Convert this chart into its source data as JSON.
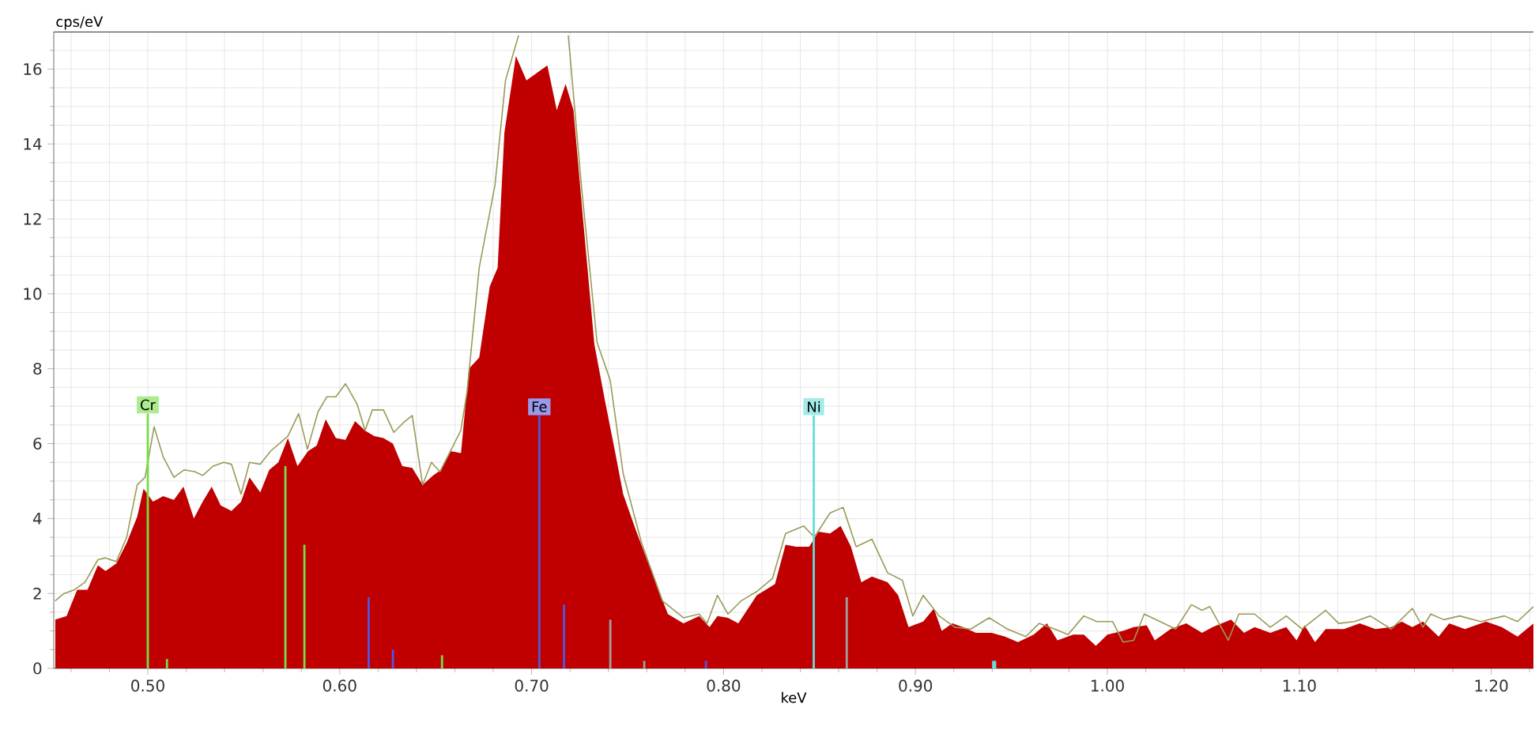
{
  "chart_data": {
    "type": "area",
    "xlabel": "keV",
    "ylabel": "cps/eV",
    "xlim": [
      0.451,
      1.222
    ],
    "ylim": [
      0,
      17
    ],
    "xticks": [
      {
        "value": 0.46,
        "label": null
      },
      {
        "value": 0.48,
        "label": null
      },
      {
        "value": 0.5,
        "label": "0.50"
      },
      {
        "value": 0.52,
        "label": null
      },
      {
        "value": 0.54,
        "label": null
      },
      {
        "value": 0.56,
        "label": null
      },
      {
        "value": 0.58,
        "label": null
      },
      {
        "value": 0.6,
        "label": "0.60"
      },
      {
        "value": 0.62,
        "label": null
      },
      {
        "value": 0.64,
        "label": null
      },
      {
        "value": 0.66,
        "label": null
      },
      {
        "value": 0.68,
        "label": null
      },
      {
        "value": 0.7,
        "label": "0.70"
      },
      {
        "value": 0.72,
        "label": null
      },
      {
        "value": 0.74,
        "label": null
      },
      {
        "value": 0.76,
        "label": null
      },
      {
        "value": 0.78,
        "label": null
      },
      {
        "value": 0.8,
        "label": "0.80"
      },
      {
        "value": 0.82,
        "label": null
      },
      {
        "value": 0.84,
        "label": null
      },
      {
        "value": 0.86,
        "label": null
      },
      {
        "value": 0.88,
        "label": null
      },
      {
        "value": 0.9,
        "label": "0.90"
      },
      {
        "value": 0.92,
        "label": null
      },
      {
        "value": 0.94,
        "label": null
      },
      {
        "value": 0.96,
        "label": null
      },
      {
        "value": 0.98,
        "label": null
      },
      {
        "value": 1.0,
        "label": "1.00"
      },
      {
        "value": 1.02,
        "label": null
      },
      {
        "value": 1.04,
        "label": null
      },
      {
        "value": 1.06,
        "label": null
      },
      {
        "value": 1.08,
        "label": null
      },
      {
        "value": 1.1,
        "label": "1.10"
      },
      {
        "value": 1.12,
        "label": null
      },
      {
        "value": 1.14,
        "label": null
      },
      {
        "value": 1.16,
        "label": null
      },
      {
        "value": 1.18,
        "label": null
      },
      {
        "value": 1.2,
        "label": "1.20"
      },
      {
        "value": 1.22,
        "label": null
      }
    ],
    "yticks": [
      0,
      {
        "value": 0.5,
        "label": null
      },
      {
        "value": 1,
        "label": null
      },
      {
        "value": 1.5,
        "label": null
      },
      2,
      {
        "value": 2.5,
        "label": null
      },
      {
        "value": 3,
        "label": null
      },
      {
        "value": 3.5,
        "label": null
      },
      4,
      {
        "value": 4.5,
        "label": null
      },
      {
        "value": 5,
        "label": null
      },
      {
        "value": 5.5,
        "label": null
      },
      6,
      {
        "value": 6.5,
        "label": null
      },
      {
        "value": 7,
        "label": null
      },
      {
        "value": 7.5,
        "label": null
      },
      8,
      {
        "value": 8.5,
        "label": null
      },
      {
        "value": 9,
        "label": null
      },
      {
        "value": 9.5,
        "label": null
      },
      10,
      {
        "value": 10.5,
        "label": null
      },
      {
        "value": 11,
        "label": null
      },
      {
        "value": 11.5,
        "label": null
      },
      12,
      {
        "value": 12.5,
        "label": null
      },
      {
        "value": 13,
        "label": null
      },
      {
        "value": 13.5,
        "label": null
      },
      14,
      {
        "value": 14.5,
        "label": null
      },
      {
        "value": 15,
        "label": null
      },
      {
        "value": 15.5,
        "label": null
      },
      16,
      {
        "value": 16.5,
        "label": null
      }
    ],
    "grid": true,
    "series": [
      {
        "color": "#c00000",
        "x": [
          0.4518,
          0.4577,
          0.4632,
          0.4686,
          0.474,
          0.478,
          0.4836,
          0.489,
          0.4945,
          0.4978,
          0.5027,
          0.508,
          0.5136,
          0.5186,
          0.524,
          0.5286,
          0.5333,
          0.538,
          0.5436,
          0.5486,
          0.553,
          0.5586,
          0.5633,
          0.568,
          0.573,
          0.578,
          0.5835,
          0.588,
          0.5927,
          0.598,
          0.603,
          0.608,
          0.6132,
          0.618,
          0.6228,
          0.6277,
          0.6326,
          0.6378,
          0.6432,
          0.6487,
          0.6528,
          0.6577,
          0.6632,
          0.6673,
          0.6727,
          0.6782,
          0.6823,
          0.6858,
          0.6918,
          0.6973,
          0.7005,
          0.7041,
          0.7082,
          0.7131,
          0.7177,
          0.7218,
          0.7267,
          0.7327,
          0.7382,
          0.7436,
          0.7477,
          0.7546,
          0.7627,
          0.771,
          0.7791,
          0.7873,
          0.7927,
          0.7968,
          0.8023,
          0.8077,
          0.8173,
          0.8268,
          0.8323,
          0.8378,
          0.8446,
          0.8495,
          0.8555,
          0.861,
          0.8664,
          0.8718,
          0.8773,
          0.8855,
          0.891,
          0.8964,
          0.904,
          0.9096,
          0.9137,
          0.9192,
          0.9247,
          0.9315,
          0.9397,
          0.9466,
          0.9534,
          0.9616,
          0.9685,
          0.974,
          0.9822,
          0.9877,
          0.994,
          1.0,
          1.0082,
          1.0137,
          1.0205,
          1.0247,
          1.0329,
          1.0411,
          1.0493,
          1.0548,
          1.0644,
          1.0712,
          1.0767,
          1.0849,
          1.0932,
          1.0986,
          1.1027,
          1.1082,
          1.1137,
          1.1233,
          1.1315,
          1.1397,
          1.1479,
          1.1534,
          1.1589,
          1.1644,
          1.1726,
          1.1781,
          1.1863,
          1.1973,
          1.2055,
          1.2137,
          1.222
        ],
        "values": [
          1.3,
          1.4,
          2.1,
          2.1,
          2.75,
          2.6,
          2.8,
          3.35,
          4.05,
          4.8,
          4.45,
          4.6,
          4.5,
          4.85,
          4.0,
          4.45,
          4.85,
          4.35,
          4.2,
          4.45,
          5.1,
          4.7,
          5.3,
          5.5,
          6.15,
          5.4,
          5.8,
          5.95,
          6.65,
          6.15,
          6.1,
          6.6,
          6.35,
          6.2,
          6.15,
          6.0,
          5.4,
          5.35,
          4.9,
          5.15,
          5.3,
          5.8,
          5.75,
          8.0,
          8.3,
          10.2,
          10.7,
          14.3,
          16.35,
          15.7,
          null,
          null,
          16.1,
          14.9,
          15.6,
          14.9,
          12.05,
          8.65,
          7.15,
          5.75,
          4.65,
          3.65,
          2.55,
          1.45,
          1.2,
          1.4,
          1.1,
          1.4,
          1.35,
          1.2,
          1.95,
          2.25,
          3.3,
          3.25,
          3.25,
          3.65,
          3.6,
          3.8,
          3.25,
          2.3,
          2.45,
          2.3,
          1.95,
          1.1,
          1.25,
          1.6,
          1.0,
          1.2,
          1.1,
          0.95,
          0.95,
          0.85,
          0.7,
          0.9,
          1.2,
          0.75,
          0.9,
          0.9,
          0.6,
          0.9,
          1.0,
          1.1,
          1.15,
          0.75,
          1.05,
          1.2,
          0.95,
          1.1,
          1.3,
          0.95,
          1.1,
          0.95,
          1.1,
          0.75,
          1.15,
          0.7,
          1.05,
          1.05,
          1.2,
          1.05,
          1.1,
          1.25,
          1.1,
          1.25,
          0.85,
          1.2,
          1.05,
          1.25,
          1.1,
          0.85,
          1.2
        ]
      },
      {
        "type": "line",
        "color": "#9a9a5a",
        "x": [
          0.4517,
          0.4564,
          0.4618,
          0.4673,
          0.474,
          0.478,
          0.4836,
          0.489,
          0.4945,
          0.4986,
          0.5033,
          0.508,
          0.5136,
          0.519,
          0.5245,
          0.5286,
          0.534,
          0.5396,
          0.5436,
          0.5486,
          0.553,
          0.5586,
          0.564,
          0.573,
          0.5786,
          0.5832,
          0.5887,
          0.5933,
          0.598,
          0.603,
          0.6091,
          0.6132,
          0.617,
          0.6228,
          0.6282,
          0.633,
          0.6378,
          0.6432,
          0.6478,
          0.6522,
          0.6582,
          0.6631,
          0.6664,
          0.6727,
          0.6809,
          0.6864,
          0.6932,
          0.706,
          0.7191,
          0.7259,
          0.7341,
          0.7409,
          0.7477,
          0.7573,
          0.7682,
          0.7791,
          0.7873,
          0.7914,
          0.7968,
          0.8023,
          0.8091,
          0.8173,
          0.8255,
          0.8323,
          0.8418,
          0.8473,
          0.8555,
          0.8623,
          0.8691,
          0.8773,
          0.8855,
          0.8932,
          0.8986,
          0.904,
          0.9123,
          0.9205,
          0.9288,
          0.9384,
          0.9479,
          0.9575,
          0.9644,
          0.9726,
          0.9795,
          0.9877,
          0.9945,
          1.0027,
          1.0082,
          1.0137,
          1.0192,
          1.0274,
          1.0356,
          1.0438,
          1.0493,
          1.0534,
          1.063,
          1.0685,
          1.0767,
          1.0849,
          1.0932,
          1.1014,
          1.1137,
          1.1205,
          1.1288,
          1.137,
          1.1479,
          1.1589,
          1.1644,
          1.1685,
          1.1753,
          1.1836,
          1.1945,
          1.2068,
          1.2137,
          1.222
        ],
        "values": [
          1.8,
          2.0,
          2.1,
          2.3,
          2.9,
          2.95,
          2.85,
          3.5,
          4.9,
          5.1,
          6.45,
          5.65,
          5.1,
          5.3,
          5.25,
          5.15,
          5.4,
          5.5,
          5.45,
          4.65,
          5.5,
          5.45,
          5.8,
          6.2,
          6.8,
          5.85,
          6.85,
          7.25,
          7.25,
          7.6,
          7.05,
          6.35,
          6.9,
          6.9,
          6.3,
          6.55,
          6.75,
          4.9,
          5.5,
          5.25,
          5.85,
          6.35,
          7.4,
          10.7,
          12.9,
          15.7,
          16.9,
          null,
          16.9,
          12.9,
          8.7,
          7.7,
          5.2,
          3.35,
          1.8,
          1.35,
          1.45,
          1.2,
          1.95,
          1.45,
          1.8,
          2.05,
          2.4,
          3.6,
          3.8,
          3.5,
          4.15,
          4.3,
          3.25,
          3.45,
          2.55,
          2.35,
          1.4,
          1.95,
          1.4,
          1.1,
          1.05,
          1.35,
          1.05,
          0.85,
          1.2,
          1.05,
          0.9,
          1.4,
          1.25,
          1.25,
          0.7,
          0.75,
          1.45,
          1.25,
          1.05,
          1.7,
          1.55,
          1.65,
          0.75,
          1.45,
          1.45,
          1.1,
          1.4,
          1.05,
          1.55,
          1.2,
          1.25,
          1.4,
          1.05,
          1.6,
          1.1,
          1.45,
          1.3,
          1.4,
          1.25,
          1.4,
          1.25,
          1.65
        ]
      },
      {
        "type": "bar",
        "name": "Cr",
        "color": "#77dd44",
        "x": [
          0.5,
          0.51,
          0.5717,
          0.5816,
          0.6533
        ],
        "values": [
          6.8,
          0.25,
          5.4,
          3.3,
          0.35
        ]
      },
      {
        "type": "bar",
        "name": "Fe",
        "color": "#5555dd",
        "x": [
          0.6151,
          0.6277,
          0.704,
          0.7169,
          0.7908
        ],
        "values": [
          1.9,
          0.5,
          6.75,
          1.7,
          0.2
        ]
      },
      {
        "type": "bar",
        "name": "Ni",
        "color": "#66dddd",
        "x": [
          0.847,
          0.9405,
          0.9415
        ],
        "values": [
          6.75,
          0.2,
          0.2
        ]
      },
      {
        "type": "bar",
        "color": "#a0a0a0",
        "x": [
          0.741,
          0.7587,
          0.8642
        ],
        "values": [
          1.3,
          0.2,
          1.9
        ]
      }
    ]
  }
}
